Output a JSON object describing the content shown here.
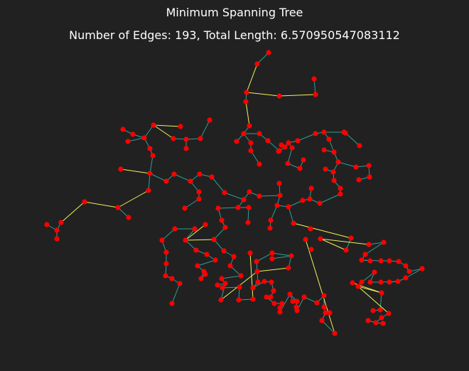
{
  "figure": {
    "title": "Minimum Spanning Tree",
    "subtitle": "Number of Edges: 193, Total Length: 6.570950547083112"
  },
  "colors": {
    "background": "#212121",
    "node": "#ff0000",
    "edge_short": "#2aa198",
    "edge_long": "#f2f25a",
    "text": "#ffffff"
  }
}
